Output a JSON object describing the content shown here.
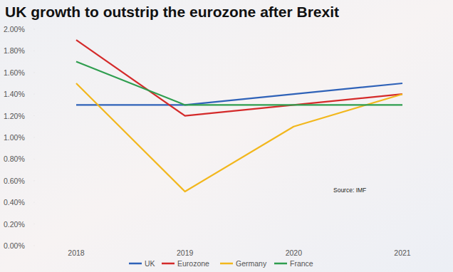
{
  "chart_data": {
    "type": "line",
    "title": "UK growth to outstrip the eurozone after Brexit",
    "categories": [
      "2018",
      "2019",
      "2020",
      "2021"
    ],
    "series": [
      {
        "name": "UK",
        "color": "#2f62b8",
        "values": [
          1.3,
          1.3,
          1.4,
          1.5
        ]
      },
      {
        "name": "Eurozone",
        "color": "#d42a2a",
        "values": [
          1.9,
          1.2,
          1.3,
          1.4
        ]
      },
      {
        "name": "Germany",
        "color": "#f2b71c",
        "values": [
          1.5,
          0.5,
          1.1,
          1.4
        ]
      },
      {
        "name": "France",
        "color": "#2f9e4f",
        "values": [
          1.7,
          1.3,
          1.3,
          1.3
        ]
      }
    ],
    "ylim": [
      0,
      2.0
    ],
    "yticks": [
      {
        "value": 0,
        "label": "0.00%"
      },
      {
        "value": 0.2,
        "label": "0.20%"
      },
      {
        "value": 0.4,
        "label": "0.40%"
      },
      {
        "value": 0.6,
        "label": "0.60%"
      },
      {
        "value": 0.8,
        "label": "0.80%"
      },
      {
        "value": 1.0,
        "label": "1.00%"
      },
      {
        "value": 1.2,
        "label": "1.20%"
      },
      {
        "value": 1.4,
        "label": "1.40%"
      },
      {
        "value": 1.6,
        "label": "1.60%"
      },
      {
        "value": 1.8,
        "label": "1.80%"
      },
      {
        "value": 2.0,
        "label": "2.00%"
      }
    ],
    "annotations": [
      "Source: IMF"
    ],
    "grid": false,
    "legend": "bottom"
  }
}
